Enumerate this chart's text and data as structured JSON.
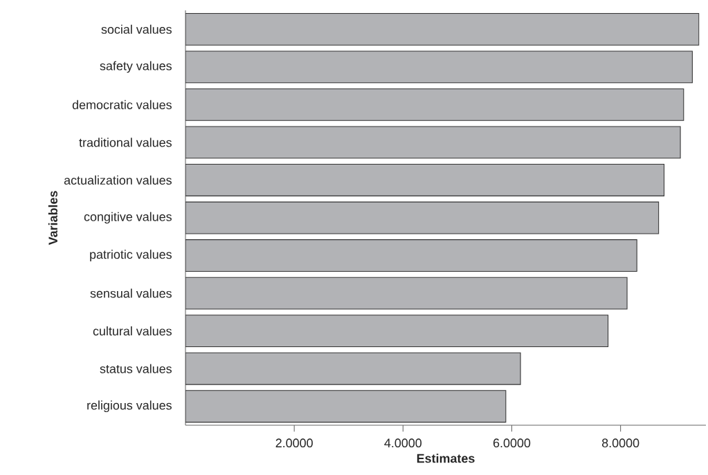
{
  "chart_data": {
    "type": "bar",
    "orientation": "horizontal",
    "xlabel": "Estimates",
    "ylabel": "Variables",
    "categories": [
      "social values",
      "safety values",
      "democratic values",
      "traditional values",
      "actualization values",
      "congitive values",
      "patriotic values",
      "sensual values",
      "cultural values",
      "status values",
      "religious values"
    ],
    "values": [
      9.44,
      9.32,
      9.16,
      9.1,
      8.8,
      8.7,
      8.3,
      8.12,
      7.77,
      6.16,
      5.89
    ],
    "color": "#b2b3b6",
    "xlim": [
      0,
      9.57
    ],
    "xticks": [
      {
        "value": 2,
        "label": "2.0000"
      },
      {
        "value": 4,
        "label": "4.0000"
      },
      {
        "value": 6,
        "label": "6.0000"
      },
      {
        "value": 8,
        "label": "8.0000"
      }
    ]
  }
}
